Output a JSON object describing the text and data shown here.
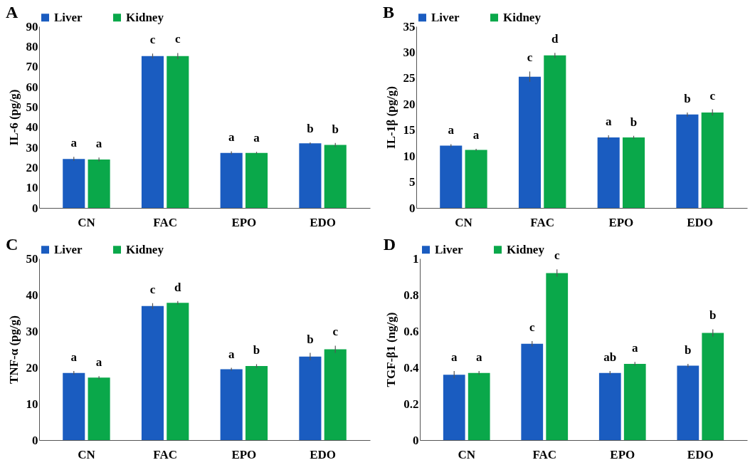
{
  "chart_data": [
    {
      "type": "bar",
      "title": "A",
      "ylabel": "IL-6 (pg/g)",
      "categories": [
        "CN",
        "FAC",
        "EPO",
        "EDO"
      ],
      "ylim": [
        0,
        90
      ],
      "yticks": [
        0,
        10,
        20,
        30,
        40,
        50,
        60,
        70,
        80,
        90
      ],
      "legend": "top left",
      "series": [
        {
          "name": "Liver",
          "color": "#1a5cc0",
          "values": [
            24.3,
            75.3,
            27.3,
            32
          ],
          "errors": [
            1,
            1.2,
            0.8,
            0.5
          ],
          "value_labels": [
            "a",
            "c",
            "a",
            "b"
          ]
        },
        {
          "name": "Kidney",
          "color": "#0aa84a",
          "values": [
            24,
            75.3,
            27.3,
            31.2
          ],
          "errors": [
            1,
            1.5,
            0.5,
            1
          ],
          "value_labels": [
            "a",
            "c",
            "a",
            "b"
          ]
        }
      ]
    },
    {
      "type": "bar",
      "title": "B",
      "ylabel": "IL-1β (pg/g)",
      "categories": [
        "CN",
        "FAC",
        "EPO",
        "EDO"
      ],
      "ylim": [
        0,
        35
      ],
      "yticks": [
        0,
        5,
        10,
        15,
        20,
        25,
        30,
        35
      ],
      "legend": "top left",
      "series": [
        {
          "name": "Liver",
          "color": "#1a5cc0",
          "values": [
            12,
            25.3,
            13.6,
            18
          ],
          "errors": [
            0.3,
            1,
            0.4,
            0.4
          ],
          "value_labels": [
            "a",
            "c",
            "a",
            "b"
          ]
        },
        {
          "name": "Kidney",
          "color": "#0aa84a",
          "values": [
            11.2,
            29.4,
            13.6,
            18.4
          ],
          "errors": [
            0.2,
            0.5,
            0.3,
            0.6
          ],
          "value_labels": [
            "a",
            "d",
            "b",
            "c"
          ]
        }
      ]
    },
    {
      "type": "bar",
      "title": "C",
      "ylabel": "TNF-α (pg/g)",
      "categories": [
        "CN",
        "FAC",
        "EPO",
        "EDO"
      ],
      "ylim": [
        0,
        50
      ],
      "yticks": [
        0,
        10,
        20,
        30,
        40,
        50
      ],
      "legend": "top left",
      "series": [
        {
          "name": "Liver",
          "color": "#1a5cc0",
          "values": [
            18.5,
            36.9,
            19.5,
            23
          ],
          "errors": [
            0.5,
            0.8,
            0.4,
            1
          ],
          "value_labels": [
            "a",
            "c",
            "a",
            "b"
          ]
        },
        {
          "name": "Kidney",
          "color": "#0aa84a",
          "values": [
            17.2,
            37.8,
            20.4,
            25
          ],
          "errors": [
            0.4,
            0.5,
            0.5,
            1
          ],
          "value_labels": [
            "a",
            "d",
            "b",
            "c"
          ]
        }
      ]
    },
    {
      "type": "bar",
      "title": "D",
      "ylabel": "TGF-β1 (ng/g)",
      "categories": [
        "CN",
        "FAC",
        "EPO",
        "EDO"
      ],
      "ylim": [
        0,
        1
      ],
      "yticks": [
        0,
        0.2,
        0.4,
        0.6,
        0.8,
        1
      ],
      "legend": "top left",
      "series": [
        {
          "name": "Liver",
          "color": "#1a5cc0",
          "values": [
            0.36,
            0.53,
            0.37,
            0.41
          ],
          "errors": [
            0.02,
            0.015,
            0.01,
            0.01
          ],
          "value_labels": [
            "a",
            "c",
            "ab",
            "b"
          ]
        },
        {
          "name": "Kidney",
          "color": "#0aa84a",
          "values": [
            0.37,
            0.92,
            0.42,
            0.59
          ],
          "errors": [
            0.01,
            0.02,
            0.01,
            0.02
          ],
          "value_labels": [
            "a",
            "c",
            "a",
            "b"
          ]
        }
      ]
    }
  ]
}
